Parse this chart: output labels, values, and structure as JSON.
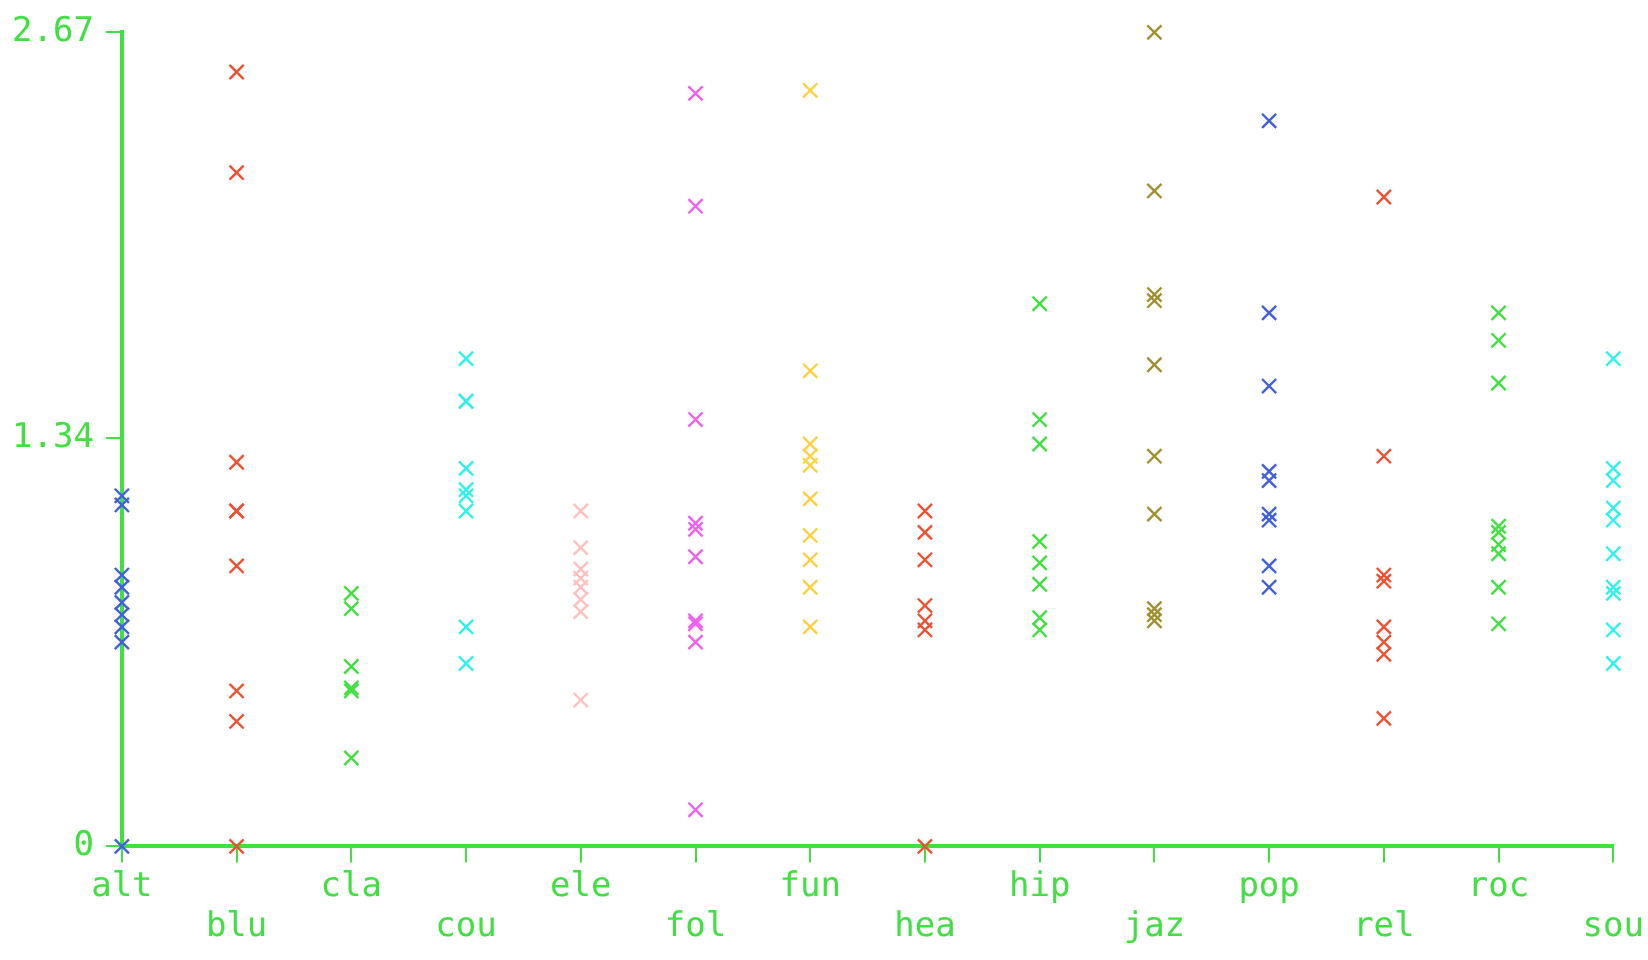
{
  "chart_data": {
    "type": "scatter",
    "categories": [
      "alt",
      "blu",
      "cla",
      "cou",
      "ele",
      "fol",
      "fun",
      "hea",
      "hip",
      "jaz",
      "pop",
      "rel",
      "roc",
      "sou"
    ],
    "ylim": [
      0,
      2.67
    ],
    "yticks": [
      0,
      1.34,
      2.67
    ],
    "grid": false,
    "legend": false,
    "marker": "cross",
    "series": [
      {
        "color": "#4060e0",
        "x": [
          "alt",
          "alt",
          "alt",
          "alt",
          "alt",
          "alt",
          "alt",
          "alt",
          "alt"
        ],
        "values": [
          0,
          1.15,
          1.12,
          0.89,
          0.85,
          0.8,
          0.76,
          0.72,
          0.67
        ]
      },
      {
        "color": "#f05030",
        "x": [
          "blu",
          "blu",
          "blu",
          "blu",
          "blu",
          "blu",
          "blu",
          "blu",
          "blu"
        ],
        "values": [
          2.54,
          2.21,
          1.26,
          1.1,
          1.1,
          0.92,
          0.51,
          0.41,
          0
        ]
      },
      {
        "color": "#40e040",
        "x": [
          "cla",
          "cla",
          "cla",
          "cla",
          "cla",
          "cla"
        ],
        "values": [
          0.83,
          0.78,
          0.59,
          0.52,
          0.51,
          0.29
        ]
      },
      {
        "color": "#30f0f0",
        "x": [
          "cou",
          "cou",
          "cou",
          "cou",
          "cou",
          "cou",
          "cou",
          "cou",
          "cou"
        ],
        "values": [
          1.6,
          1.46,
          1.46,
          1.24,
          1.17,
          1.15,
          1.1,
          0.72,
          0.6
        ]
      },
      {
        "color": "#ffc0c0",
        "x": [
          "ele",
          "ele",
          "ele",
          "ele",
          "ele",
          "ele",
          "ele",
          "ele"
        ],
        "values": [
          1.1,
          0.98,
          0.91,
          0.88,
          0.85,
          0.81,
          0.77,
          0.48
        ]
      },
      {
        "color": "#f060f0",
        "x": [
          "fol",
          "fol",
          "fol",
          "fol",
          "fol",
          "fol",
          "fol",
          "fol",
          "fol",
          "fol"
        ],
        "values": [
          2.47,
          2.1,
          1.4,
          1.06,
          1.04,
          0.95,
          0.74,
          0.73,
          0.67,
          0.12
        ]
      },
      {
        "color": "#ffd040",
        "x": [
          "fun",
          "fun",
          "fun",
          "fun",
          "fun",
          "fun",
          "fun",
          "fun",
          "fun",
          "fun"
        ],
        "values": [
          2.48,
          1.56,
          1.32,
          1.28,
          1.25,
          1.14,
          1.02,
          0.94,
          0.85,
          0.72
        ]
      },
      {
        "color": "#f05030",
        "x": [
          "hea",
          "hea",
          "hea",
          "hea",
          "hea",
          "hea",
          "hea"
        ],
        "values": [
          1.1,
          1.03,
          0.94,
          0.79,
          0.74,
          0.71,
          0
        ]
      },
      {
        "color": "#40e040",
        "x": [
          "hip",
          "hip",
          "hip",
          "hip",
          "hip",
          "hip",
          "hip",
          "hip"
        ],
        "values": [
          1.78,
          1.4,
          1.32,
          1,
          0.93,
          0.86,
          0.75,
          0.71
        ]
      },
      {
        "color": "#a09030",
        "x": [
          "jaz",
          "jaz",
          "jaz",
          "jaz",
          "jaz",
          "jaz",
          "jaz",
          "jaz",
          "jaz",
          "jaz"
        ],
        "values": [
          2.67,
          2.15,
          1.81,
          1.79,
          1.58,
          1.28,
          1.09,
          0.78,
          0.76,
          0.74
        ]
      },
      {
        "color": "#4060e0",
        "x": [
          "pop",
          "pop",
          "pop",
          "pop",
          "pop",
          "pop",
          "pop",
          "pop",
          "pop"
        ],
        "values": [
          2.38,
          1.75,
          1.51,
          1.23,
          1.2,
          1.09,
          1.07,
          0.92,
          0.85
        ]
      },
      {
        "color": "#f05030",
        "x": [
          "rel",
          "rel",
          "rel",
          "rel",
          "rel",
          "rel",
          "rel",
          "rel"
        ],
        "values": [
          2.13,
          1.28,
          0.89,
          0.87,
          0.72,
          0.67,
          0.63,
          0.42
        ]
      },
      {
        "color": "#40e040",
        "x": [
          "roc",
          "roc",
          "roc",
          "roc",
          "roc",
          "roc",
          "roc",
          "roc",
          "roc"
        ],
        "values": [
          1.75,
          1.66,
          1.52,
          1.05,
          1.03,
          0.99,
          0.96,
          0.85,
          0.73
        ]
      },
      {
        "color": "#30f0f0",
        "x": [
          "sou",
          "sou",
          "sou",
          "sou",
          "sou",
          "sou",
          "sou",
          "sou",
          "sou",
          "sou"
        ],
        "values": [
          1.6,
          1.24,
          1.2,
          1.11,
          1.07,
          0.96,
          0.85,
          0.83,
          0.71,
          0.6
        ]
      }
    ]
  }
}
